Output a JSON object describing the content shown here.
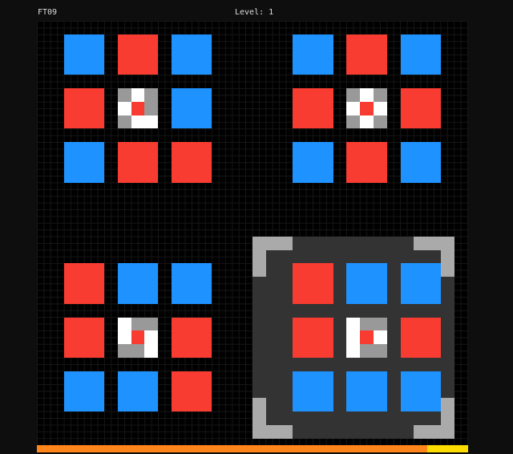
{
  "header": {
    "game_id": "FT09",
    "level_label": "Level: 1"
  },
  "colors": {
    "B": "#1e93ff",
    "R": "#f93c31",
    "W": "#ffffff",
    "G": "#999999",
    "panel": "#333333",
    "bracket": "#aaaaaa",
    "bar_used": "#ff851b",
    "bar_remaining": "#ffdc00"
  },
  "groups": [
    {
      "name": "top-left",
      "tiles": [
        [
          "B",
          "R",
          "B"
        ],
        [
          "R",
          "C",
          "B"
        ],
        [
          "B",
          "R",
          "R"
        ]
      ],
      "center": [
        [
          "G",
          "W",
          "G"
        ],
        [
          "W",
          "R",
          "G"
        ],
        [
          "G",
          "W",
          "W"
        ]
      ],
      "selected": false
    },
    {
      "name": "top-right",
      "tiles": [
        [
          "B",
          "R",
          "B"
        ],
        [
          "R",
          "C",
          "R"
        ],
        [
          "B",
          "R",
          "B"
        ]
      ],
      "center": [
        [
          "G",
          "W",
          "G"
        ],
        [
          "W",
          "R",
          "W"
        ],
        [
          "G",
          "W",
          "G"
        ]
      ],
      "selected": false
    },
    {
      "name": "bottom-left",
      "tiles": [
        [
          "R",
          "B",
          "B"
        ],
        [
          "R",
          "C",
          "R"
        ],
        [
          "B",
          "B",
          "R"
        ]
      ],
      "center": [
        [
          "W",
          "G",
          "G"
        ],
        [
          "W",
          "R",
          "W"
        ],
        [
          "G",
          "G",
          "W"
        ]
      ],
      "selected": false
    },
    {
      "name": "bottom-right",
      "tiles": [
        [
          "R",
          "B",
          "B"
        ],
        [
          "R",
          "C",
          "R"
        ],
        [
          "B",
          "B",
          "B"
        ]
      ],
      "center": [
        [
          "W",
          "G",
          "G"
        ],
        [
          "W",
          "R",
          "W"
        ],
        [
          "W",
          "G",
          "G"
        ]
      ],
      "selected": true
    }
  ],
  "progress": {
    "used_fraction": 0.906
  }
}
